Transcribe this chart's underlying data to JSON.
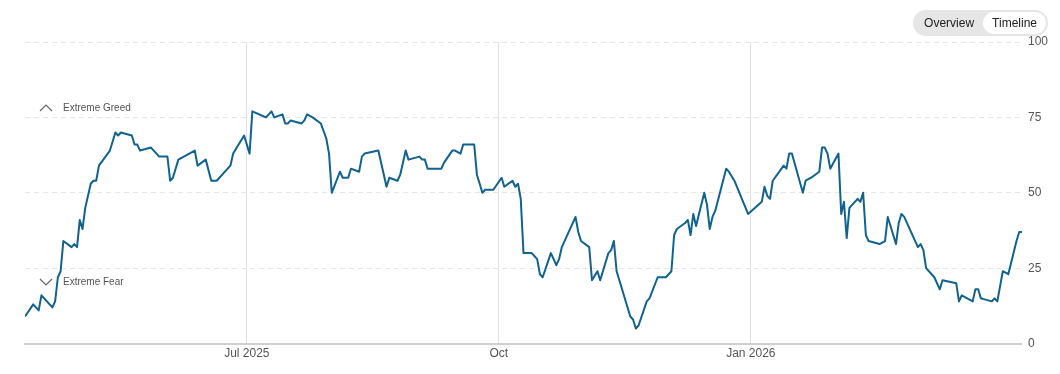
{
  "chart_data": {
    "type": "line",
    "x": [
      "2025-04-11",
      "2025-04-14",
      "2025-04-16",
      "2025-04-17",
      "2025-04-21",
      "2025-04-22",
      "2025-04-23",
      "2025-04-24",
      "2025-04-25",
      "2025-04-28",
      "2025-04-29",
      "2025-04-30",
      "2025-05-01",
      "2025-05-02",
      "2025-05-03",
      "2025-05-05",
      "2025-05-06",
      "2025-05-07",
      "2025-05-08",
      "2025-05-12",
      "2025-05-14",
      "2025-05-15",
      "2025-05-16",
      "2025-05-20",
      "2025-05-21",
      "2025-05-22",
      "2025-05-23",
      "2025-05-27",
      "2025-05-28",
      "2025-05-30",
      "2025-06-02",
      "2025-06-03",
      "2025-06-04",
      "2025-06-06",
      "2025-06-12",
      "2025-06-13",
      "2025-06-16",
      "2025-06-18",
      "2025-06-20",
      "2025-06-23",
      "2025-06-25",
      "2025-06-26",
      "2025-06-30",
      "2025-07-02",
      "2025-07-03",
      "2025-07-08",
      "2025-07-10",
      "2025-07-11",
      "2025-07-14",
      "2025-07-15",
      "2025-07-16",
      "2025-07-17",
      "2025-07-21",
      "2025-07-22",
      "2025-07-23",
      "2025-07-25",
      "2025-07-28",
      "2025-07-30",
      "2025-07-31",
      "2025-08-01",
      "2025-08-04",
      "2025-08-05",
      "2025-08-07",
      "2025-08-08",
      "2025-08-11",
      "2025-08-12",
      "2025-08-13",
      "2025-08-18",
      "2025-08-21",
      "2025-08-22",
      "2025-08-25",
      "2025-08-26",
      "2025-08-28",
      "2025-08-29",
      "2025-09-02",
      "2025-09-03",
      "2025-09-04",
      "2025-09-05",
      "2025-09-10",
      "2025-09-11",
      "2025-09-14",
      "2025-09-15",
      "2025-09-17",
      "2025-09-18",
      "2025-09-22",
      "2025-09-23",
      "2025-09-25",
      "2025-09-26",
      "2025-09-29",
      "2025-10-02",
      "2025-10-03",
      "2025-10-06",
      "2025-10-07",
      "2025-10-08",
      "2025-10-09",
      "2025-10-10",
      "2025-10-13",
      "2025-10-15",
      "2025-10-16",
      "2025-10-17",
      "2025-10-20",
      "2025-10-22",
      "2025-10-23",
      "2025-10-24",
      "2025-10-29",
      "2025-10-30",
      "2025-10-31",
      "2025-11-03",
      "2025-11-04",
      "2025-11-06",
      "2025-11-07",
      "2025-11-10",
      "2025-11-11",
      "2025-11-12",
      "2025-11-13",
      "2025-11-18",
      "2025-11-19",
      "2025-11-20",
      "2025-11-21",
      "2025-11-24",
      "2025-11-25",
      "2025-11-28",
      "2025-12-01",
      "2025-12-03",
      "2025-12-04",
      "2025-12-05",
      "2025-12-08",
      "2025-12-09",
      "2025-12-10",
      "2025-12-11",
      "2025-12-12",
      "2025-12-15",
      "2025-12-16",
      "2025-12-17",
      "2025-12-18",
      "2025-12-19",
      "2025-12-23",
      "2025-12-24",
      "2025-12-26",
      "2025-12-31",
      "2026-01-05",
      "2026-01-06",
      "2026-01-07",
      "2026-01-08",
      "2026-01-09",
      "2026-01-13",
      "2026-01-14",
      "2026-01-15",
      "2026-01-16",
      "2026-01-20",
      "2026-01-21",
      "2026-01-23",
      "2026-01-26",
      "2026-01-27",
      "2026-01-28",
      "2026-01-29",
      "2026-01-30",
      "2026-02-02",
      "2026-02-03",
      "2026-02-04",
      "2026-02-05",
      "2026-02-06",
      "2026-02-09",
      "2026-02-10",
      "2026-02-11",
      "2026-02-12",
      "2026-02-13",
      "2026-02-17",
      "2026-02-19",
      "2026-02-20",
      "2026-02-23",
      "2026-02-24",
      "2026-02-25",
      "2026-02-26",
      "2026-03-03",
      "2026-03-04",
      "2026-03-05",
      "2026-03-06",
      "2026-03-09",
      "2026-03-11",
      "2026-03-12",
      "2026-03-17",
      "2026-03-18",
      "2026-03-19",
      "2026-03-23",
      "2026-03-24",
      "2026-03-25",
      "2026-03-26",
      "2026-03-30",
      "2026-03-31",
      "2026-04-01",
      "2026-04-03",
      "2026-04-05",
      "2026-04-08",
      "2026-04-09",
      "2026-04-10"
    ],
    "series": [
      {
        "color": "#10628f",
        "values": [
          9,
          13,
          11,
          16,
          12,
          14,
          22,
          24,
          34,
          32,
          33,
          32,
          41,
          38,
          45,
          53,
          54,
          54,
          59,
          64,
          70,
          69,
          70,
          69,
          66,
          66,
          64,
          65,
          64,
          62,
          62,
          54,
          55,
          61,
          64,
          59,
          61,
          54,
          54,
          57,
          59,
          63,
          69,
          63,
          77,
          75,
          77,
          75,
          76,
          73,
          73,
          74,
          73,
          74,
          76,
          75,
          73,
          68,
          63,
          50,
          57,
          55,
          55,
          58,
          57,
          62,
          63,
          64,
          52,
          55,
          54,
          56,
          64,
          61,
          62,
          61,
          61,
          58,
          58,
          60,
          64,
          64,
          63,
          66,
          66,
          56,
          50,
          51,
          51,
          55,
          52,
          54,
          52,
          53,
          48,
          30,
          30,
          28,
          23,
          22,
          30,
          26,
          28,
          32,
          42,
          37,
          34,
          32,
          21,
          24,
          21,
          30,
          31,
          34,
          24,
          9,
          8,
          5,
          6,
          14,
          15,
          22,
          22,
          24,
          36,
          38,
          40,
          41,
          36,
          43,
          39,
          50,
          46,
          38,
          42,
          44,
          58,
          57,
          54,
          43,
          47,
          52,
          49,
          48,
          54,
          59,
          58,
          63,
          63,
          50,
          54,
          55,
          57,
          65,
          65,
          63,
          58,
          63,
          43,
          47,
          35,
          45,
          48,
          47,
          50,
          36,
          34,
          33,
          34,
          42,
          33,
          40,
          43,
          42,
          32,
          33,
          31,
          25,
          22,
          18,
          21,
          20,
          14,
          16,
          14,
          18,
          18,
          15,
          14,
          15,
          14,
          24,
          23,
          34,
          37,
          37
        ]
      }
    ],
    "xlim": [
      "2025-04-11",
      "2026-04-10"
    ],
    "xticks": [
      {
        "value": "2025-07-01",
        "label": "Jul 2025"
      },
      {
        "value": "2025-10-01",
        "label": "Oct"
      },
      {
        "value": "2026-01-01",
        "label": "Jan 2026"
      }
    ],
    "ylim": [
      0,
      100
    ],
    "yticks": [
      0,
      25,
      50,
      75,
      100
    ],
    "grid": true,
    "marker": "none",
    "line_style": "solid",
    "legend": false,
    "annotations": [
      "Extreme Greed",
      "Extreme Fear",
      "Overview",
      "Timeline"
    ]
  }
}
